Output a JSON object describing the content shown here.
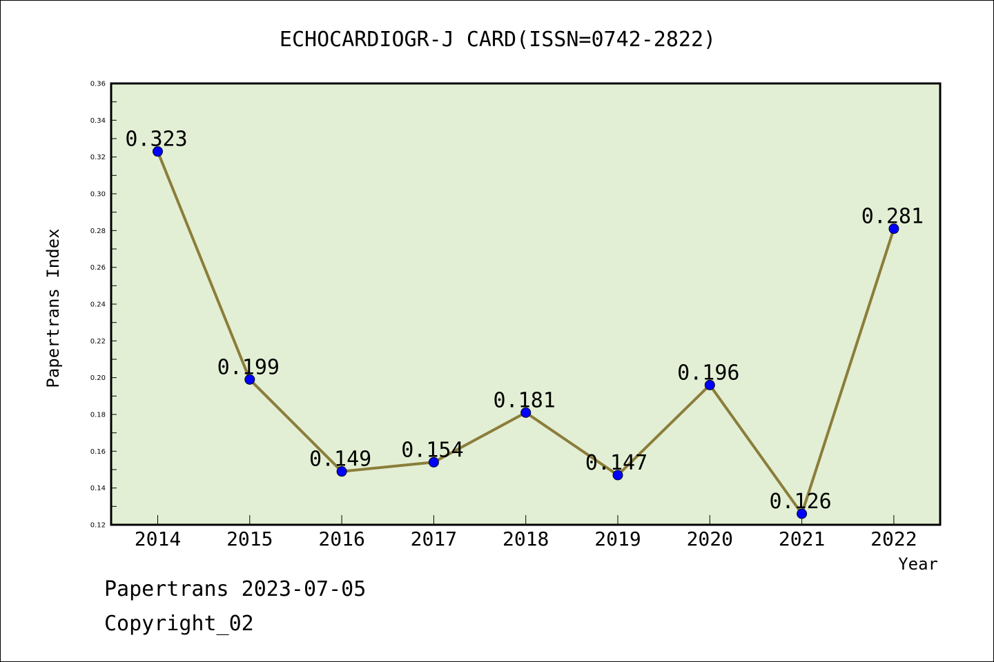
{
  "chart_data": {
    "type": "line",
    "title": "ECHOCARDIOGR-J CARD(ISSN=0742-2822)",
    "xlabel": "Year",
    "ylabel": "Papertrans Index",
    "categories": [
      "2014",
      "2015",
      "2016",
      "2017",
      "2018",
      "2019",
      "2020",
      "2021",
      "2022"
    ],
    "values": [
      0.323,
      0.199,
      0.149,
      0.154,
      0.181,
      0.147,
      0.196,
      0.126,
      0.281
    ],
    "data_labels": [
      "0.323",
      "0.199",
      "0.149",
      "0.154",
      "0.181",
      "0.147",
      "0.196",
      "0.126",
      "0.281"
    ],
    "ylim": [
      0.12,
      0.36
    ],
    "yticks": [
      "0.12",
      "0.14",
      "0.16",
      "0.18",
      "0.20",
      "0.22",
      "0.24",
      "0.26",
      "0.28",
      "0.30",
      "0.32",
      "0.34",
      "0.36"
    ],
    "grid": false,
    "colors": {
      "plot_background": "#e2efd4",
      "line": "#8b7d3a",
      "marker": "#0000ff"
    }
  },
  "footer": {
    "line1": "Papertrans 2023-07-05",
    "line2": "Copyright_02"
  }
}
